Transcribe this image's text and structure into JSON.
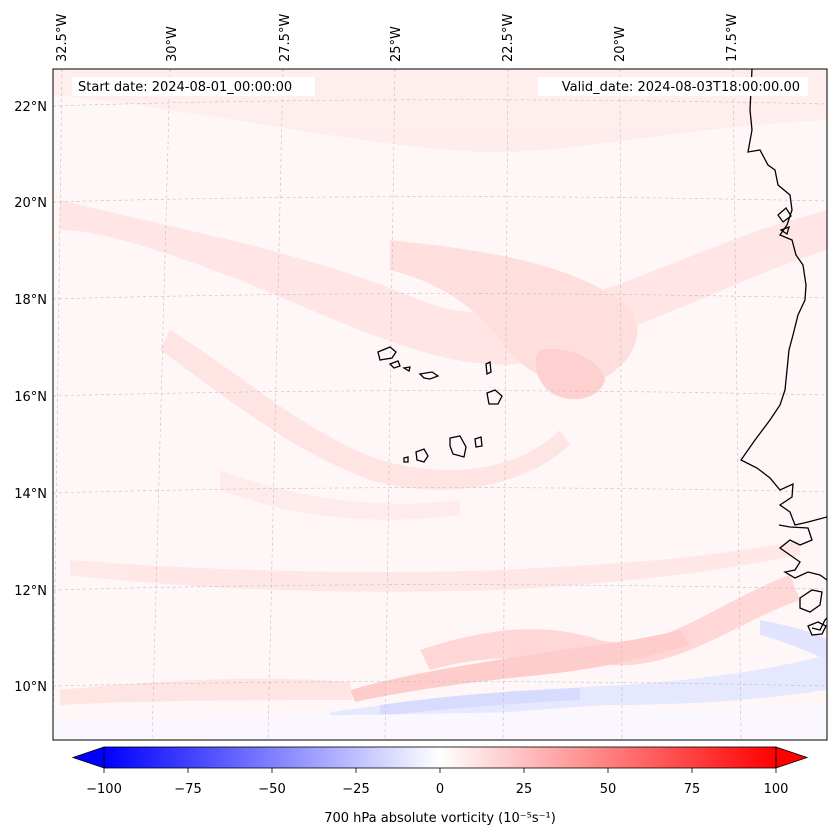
{
  "map": {
    "start_date": "Start date: 2024-08-01_00:00:00",
    "valid_date": "Valid_date: 2024-08-03T18:00:00.00",
    "lon_labels": [
      "32.5°W",
      "30°W",
      "27.5°W",
      "25°W",
      "22.5°W",
      "20°W",
      "17.5°W"
    ],
    "lat_labels": [
      "22°N",
      "20°N",
      "18°N",
      "16°N",
      "14°N",
      "12°N",
      "10°N"
    ]
  },
  "colorbar": {
    "label": "700 hPa absolute vorticity (10⁻⁵s⁻¹)",
    "ticks": [
      "−100",
      "−75",
      "−50",
      "−25",
      "0",
      "25",
      "50",
      "75",
      "100"
    ],
    "min": -100,
    "max": 100,
    "low_color": "#0000ff",
    "mid_color": "#ffffff",
    "high_color": "#ff0000"
  }
}
